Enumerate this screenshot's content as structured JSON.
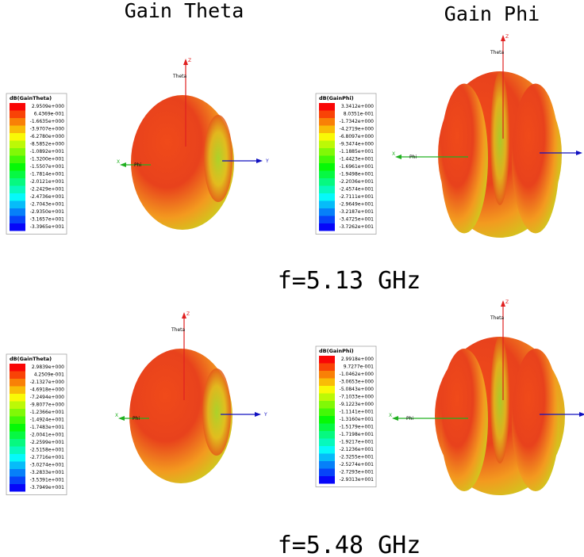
{
  "headers": [
    "Gain Theta",
    "Gain Phi"
  ],
  "captions": [
    "f=5.13 GHz",
    "f=5.48 GHz"
  ],
  "panels": [
    {
      "legend_title": "dB(GainTheta)",
      "axis_labels": [
        "Z",
        "Theta",
        "X",
        "Phi",
        "Y"
      ],
      "legend": [
        "2.9509e+000",
        "6.4369e-001",
        "-1.6635e+000",
        "-3.9707e+000",
        "-6.2780e+000",
        "-8.5852e+000",
        "-1.0892e+001",
        "-1.3200e+001",
        "-1.5507e+001",
        "-1.7814e+001",
        "-2.0121e+001",
        "-2.2429e+001",
        "-2.4736e+001",
        "-2.7043e+001",
        "-2.9350e+001",
        "-3.1657e+001",
        "-3.3965e+001"
      ]
    },
    {
      "legend_title": "dB(GainPhi)",
      "axis_labels": [
        "Z",
        "Theta",
        "X",
        "Phi",
        "Y"
      ],
      "legend": [
        "3.3412e+000",
        "8.0351e-001",
        "-1.7342e+000",
        "-4.2719e+000",
        "-6.8097e+000",
        "-9.3474e+000",
        "-1.1885e+001",
        "-1.4423e+001",
        "-1.6961e+001",
        "-1.9498e+001",
        "-2.2036e+001",
        "-2.4574e+001",
        "-2.7111e+001",
        "-2.9649e+001",
        "-3.2187e+001",
        "-3.4725e+001",
        "-3.7262e+001"
      ]
    },
    {
      "legend_title": "dB(GainTheta)",
      "axis_labels": [
        "Z",
        "Theta",
        "X",
        "Phi",
        "Y"
      ],
      "legend": [
        "2.9839e+000",
        "4.2509e-001",
        "-2.1327e+000",
        "-4.6918e+000",
        "-7.2494e+000",
        "-9.8077e+000",
        "-1.2366e+001",
        "-1.4924e+001",
        "-1.7483e+001",
        "-2.0041e+001",
        "-2.2599e+001",
        "-2.5158e+001",
        "-2.7716e+001",
        "-3.0274e+001",
        "-3.2833e+001",
        "-3.5391e+001",
        "-3.7949e+001"
      ]
    },
    {
      "legend_title": "dB(GainPhi)",
      "axis_labels": [
        "Z",
        "Theta",
        "X",
        "Phi",
        "Y"
      ],
      "legend": [
        "2.9918e+000",
        "9.7277e-001",
        "-1.0462e+000",
        "-3.0653e+000",
        "-5.0843e+000",
        "-7.1033e+000",
        "-9.1223e+000",
        "-1.1141e+001",
        "-1.3160e+001",
        "-1.5179e+001",
        "-1.7198e+001",
        "-1.9217e+001",
        "-2.1236e+001",
        "-2.3255e+001",
        "-2.5274e+001",
        "-2.7293e+001",
        "-2.9313e+001"
      ]
    }
  ]
}
